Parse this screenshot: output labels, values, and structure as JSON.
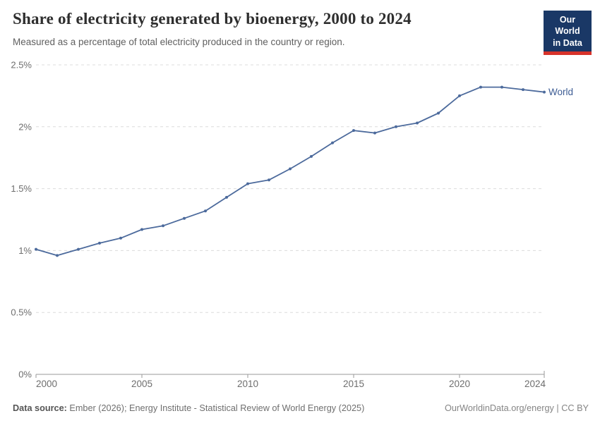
{
  "header": {
    "title": "Share of electricity generated by bioenergy, 2000 to 2024",
    "subtitle": "Measured as a percentage of total electricity produced in the country or region.",
    "logo": {
      "line1": "Our World",
      "line2": "in Data"
    }
  },
  "chart_data": {
    "type": "line",
    "title": "Share of electricity generated by bioenergy, 2000 to 2024",
    "subtitle": "Measured as a percentage of total electricity produced in the country or region.",
    "x": [
      2000,
      2001,
      2002,
      2003,
      2004,
      2005,
      2006,
      2007,
      2008,
      2009,
      2010,
      2011,
      2012,
      2013,
      2014,
      2015,
      2016,
      2017,
      2018,
      2019,
      2020,
      2021,
      2022,
      2023,
      2024
    ],
    "series": [
      {
        "name": "World",
        "values": [
          1.01,
          0.96,
          1.01,
          1.06,
          1.1,
          1.17,
          1.2,
          1.26,
          1.32,
          1.43,
          1.54,
          1.57,
          1.66,
          1.76,
          1.87,
          1.97,
          1.95,
          2.0,
          2.03,
          2.11,
          2.25,
          2.32,
          2.32,
          2.3,
          2.28
        ]
      }
    ],
    "xlabel": "",
    "ylabel": "",
    "xlim": [
      2000,
      2024
    ],
    "ylim": [
      0,
      2.5
    ],
    "xticks": [
      2000,
      2005,
      2010,
      2015,
      2020,
      2024
    ],
    "yticks": [
      {
        "value": 0,
        "label": "0%"
      },
      {
        "value": 0.5,
        "label": "0.5%"
      },
      {
        "value": 1,
        "label": "1%"
      },
      {
        "value": 1.5,
        "label": "1.5%"
      },
      {
        "value": 2,
        "label": "2%"
      },
      {
        "value": 2.5,
        "label": "2.5%"
      }
    ],
    "grid": "horizontal-dashed",
    "legend_position": "end-of-line-label",
    "unit": "%"
  },
  "footer": {
    "source_label": "Data source:",
    "source_text": " Ember (2026); Energy Institute - Statistical Review of World Energy (2025)",
    "credit": "OurWorldinData.org/energy | CC BY"
  },
  "colors": {
    "line": "#4C6A9C",
    "series_label": "#3d5c94",
    "grid": "#dcdcdc",
    "axis": "#9a9a9a",
    "tick_label": "#6e6e6e",
    "logo_bg": "#1a3866",
    "logo_red": "#d7332b"
  }
}
